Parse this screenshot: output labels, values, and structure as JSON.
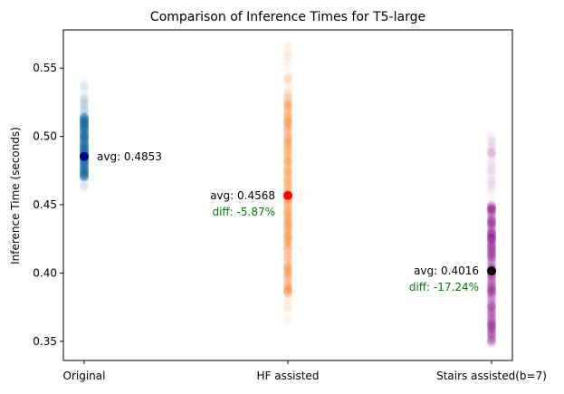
{
  "chart_data": {
    "type": "scatter",
    "title": "Comparison of Inference Times for T5-large",
    "xlabel": "",
    "ylabel": "Inference Time (seconds)",
    "categories": [
      "Original",
      "HF assisted",
      "Stairs assisted(b=7)"
    ],
    "ylim": [
      0.336,
      0.578
    ],
    "yticks": [
      0.35,
      0.4,
      0.45,
      0.5,
      0.55
    ],
    "ytick_labels": [
      "0.35",
      "0.40",
      "0.45",
      "0.50",
      "0.55"
    ],
    "grid": false,
    "legend": "none",
    "series": [
      {
        "category": "Original",
        "color": "#1f77b4",
        "avg": 0.4853,
        "avg_color": "#00008b",
        "avg_label": "avg: 0.4853",
        "diff_label": "",
        "range": [
          0.462,
          0.54
        ],
        "dense_range": [
          0.47,
          0.515
        ]
      },
      {
        "category": "HF assisted",
        "color": "#ff7f0e",
        "avg": 0.4568,
        "avg_color": "#ff0000",
        "avg_label": "avg: 0.4568",
        "diff_label": "diff: -5.87%",
        "range": [
          0.365,
          0.57
        ],
        "dense_range": [
          0.385,
          0.53
        ]
      },
      {
        "category": "Stairs assisted(b=7)",
        "color": "#800080",
        "avg": 0.4016,
        "avg_color": "#000000",
        "avg_label": "avg: 0.4016",
        "diff_label": "diff: -17.24%",
        "range": [
          0.348,
          0.502
        ],
        "dense_range": [
          0.35,
          0.45
        ]
      }
    ],
    "diff_color": "#008000"
  }
}
